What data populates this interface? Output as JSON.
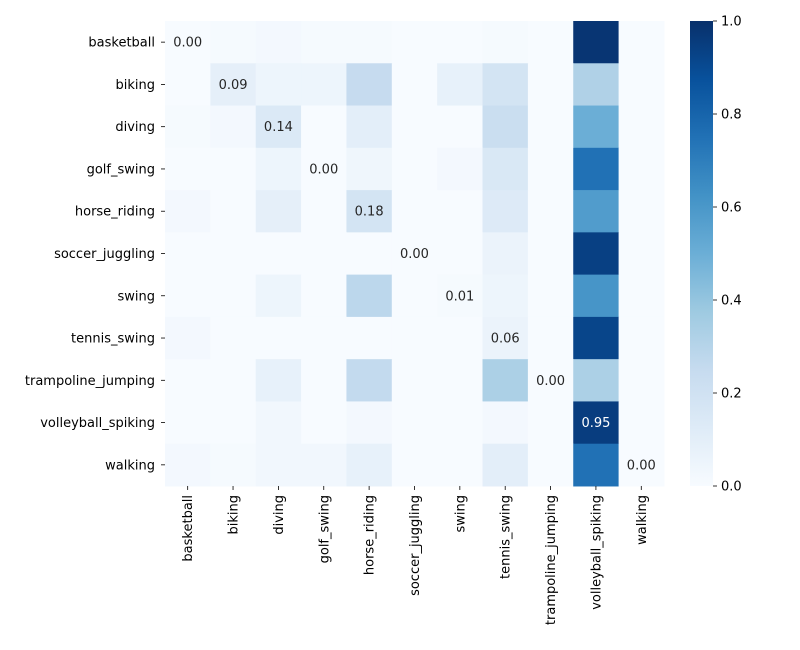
{
  "chart_data": {
    "type": "heatmap",
    "title": "",
    "xlabel": "",
    "ylabel": "",
    "rows": [
      "basketball",
      "biking",
      "diving",
      "golf_swing",
      "horse_riding",
      "soccer_juggling",
      "swing",
      "tennis_swing",
      "trampoline_jumping",
      "volleyball_spiking",
      "walking"
    ],
    "columns": [
      "basketball",
      "biking",
      "diving",
      "golf_swing",
      "horse_riding",
      "soccer_juggling",
      "swing",
      "tennis_swing",
      "trampoline_jumping",
      "volleyball_spiking",
      "walking"
    ],
    "values": [
      [
        0.0,
        0.01,
        0.02,
        0.01,
        0.01,
        0.0,
        0.0,
        0.01,
        0.0,
        0.98,
        0.0
      ],
      [
        0.0,
        0.09,
        0.05,
        0.05,
        0.25,
        0.0,
        0.08,
        0.18,
        0.0,
        0.32,
        0.0
      ],
      [
        0.01,
        0.02,
        0.14,
        0.0,
        0.1,
        0.0,
        0.0,
        0.23,
        0.0,
        0.5,
        0.0
      ],
      [
        0.0,
        0.0,
        0.05,
        0.0,
        0.04,
        0.0,
        0.02,
        0.15,
        0.0,
        0.75,
        0.0
      ],
      [
        0.02,
        0.0,
        0.09,
        0.0,
        0.18,
        0.0,
        0.0,
        0.13,
        0.0,
        0.58,
        0.0
      ],
      [
        0.0,
        0.0,
        0.0,
        0.0,
        0.0,
        0.0,
        0.0,
        0.06,
        0.0,
        0.94,
        0.0
      ],
      [
        0.0,
        0.0,
        0.05,
        0.0,
        0.28,
        0.0,
        0.01,
        0.05,
        0.0,
        0.61,
        0.0
      ],
      [
        0.02,
        0.0,
        0.0,
        0.0,
        0.0,
        0.0,
        0.0,
        0.06,
        0.0,
        0.92,
        0.0
      ],
      [
        0.0,
        0.0,
        0.08,
        0.0,
        0.26,
        0.0,
        0.0,
        0.33,
        0.0,
        0.33,
        0.0
      ],
      [
        0.0,
        0.0,
        0.03,
        0.0,
        0.02,
        0.0,
        0.0,
        0.02,
        0.0,
        0.95,
        0.0
      ],
      [
        0.02,
        0.01,
        0.03,
        0.03,
        0.08,
        0.0,
        0.0,
        0.1,
        0.0,
        0.75,
        0.0
      ]
    ],
    "annotations": [
      {
        "row": 0,
        "col": 0,
        "text": "0.00"
      },
      {
        "row": 1,
        "col": 1,
        "text": "0.09"
      },
      {
        "row": 2,
        "col": 2,
        "text": "0.14"
      },
      {
        "row": 3,
        "col": 3,
        "text": "0.00"
      },
      {
        "row": 4,
        "col": 4,
        "text": "0.18"
      },
      {
        "row": 5,
        "col": 5,
        "text": "0.00"
      },
      {
        "row": 6,
        "col": 6,
        "text": "0.01"
      },
      {
        "row": 7,
        "col": 7,
        "text": "0.06"
      },
      {
        "row": 8,
        "col": 8,
        "text": "0.00"
      },
      {
        "row": 9,
        "col": 9,
        "text": "0.95"
      },
      {
        "row": 10,
        "col": 10,
        "text": "0.00"
      }
    ],
    "colorbar": {
      "range": [
        0.0,
        1.0
      ],
      "ticks": [
        "0.0",
        "0.2",
        "0.4",
        "0.6",
        "0.8",
        "1.0"
      ],
      "colormap": "Blues",
      "low_color": "#f7fbff",
      "high_color": "#08306b"
    },
    "grid": false
  }
}
